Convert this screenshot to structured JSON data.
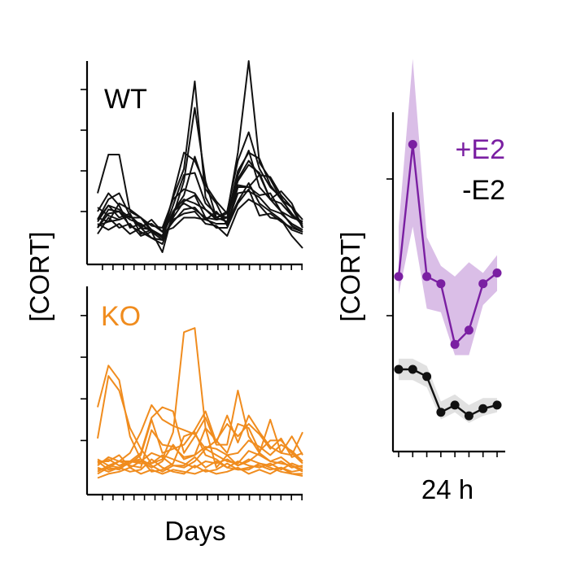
{
  "colors": {
    "wt": "#111111",
    "ko": "#f08c1e",
    "e2_plus": "#7a1fa2",
    "e2_plus_band": "#d3b3e3",
    "e2_minus": "#111111",
    "e2_minus_band": "#dcdcdc"
  },
  "chart_data": [
    {
      "type": "line",
      "panel": "top-left",
      "annotation": "WT",
      "xlabel": "",
      "ylabel": "[CORT]",
      "ylim": [
        0,
        10
      ],
      "x": [
        1,
        2,
        3,
        4,
        5,
        6,
        7,
        8,
        9,
        10,
        11,
        12,
        13,
        14,
        15,
        16,
        17,
        18,
        19,
        20
      ],
      "series": [
        {
          "values": [
            3.5,
            5.4,
            5.4,
            2.6,
            2.3,
            1.7,
            1.4,
            2.6,
            3.4,
            5.3,
            3.7,
            3.0,
            1.9,
            3.8,
            3.8,
            4.4,
            3.2,
            3.6,
            3.0,
            1.8
          ]
        },
        {
          "values": [
            2.2,
            3.2,
            3.5,
            2.4,
            1.8,
            2.2,
            1.6,
            3.3,
            4.7,
            9.0,
            3.3,
            2.3,
            2.5,
            5.5,
            10.0,
            5.0,
            4.2,
            3.2,
            2.8,
            2.2
          ]
        },
        {
          "values": [
            1.8,
            2.7,
            2.6,
            1.9,
            1.6,
            1.3,
            1.0,
            2.4,
            4.1,
            7.7,
            4.1,
            2.3,
            2.6,
            5.1,
            6.5,
            4.7,
            3.8,
            3.3,
            2.4,
            2.0
          ]
        },
        {
          "values": [
            2.8,
            2.4,
            2.2,
            2.4,
            1.8,
            1.7,
            1.3,
            3.4,
            5.5,
            5.1,
            3.9,
            3.1,
            2.5,
            4.1,
            4.9,
            4.5,
            3.2,
            3.0,
            2.4,
            2.1
          ]
        },
        {
          "values": [
            2.2,
            2.9,
            2.3,
            2.5,
            1.5,
            1.7,
            1.4,
            2.9,
            4.4,
            4.5,
            3.0,
            2.5,
            2.3,
            4.6,
            5.5,
            5.2,
            3.9,
            3.2,
            2.5,
            1.9
          ]
        },
        {
          "values": [
            2.3,
            2.1,
            3.0,
            2.7,
            2.3,
            1.9,
            1.8,
            3.2,
            3.7,
            3.5,
            2.7,
            2.2,
            2.3,
            4.2,
            5.1,
            4.4,
            4.3,
            3.4,
            2.8,
            1.8
          ]
        },
        {
          "values": [
            2.6,
            3.5,
            2.9,
            1.8,
            2.0,
            1.6,
            1.4,
            2.6,
            3.2,
            3.0,
            2.7,
            2.3,
            2.1,
            4.4,
            5.6,
            3.8,
            3.2,
            2.6,
            2.3,
            2.1
          ]
        },
        {
          "values": [
            2.1,
            2.9,
            2.7,
            2.3,
            2.3,
            1.6,
            1.2,
            2.3,
            3.1,
            3.4,
            2.3,
            2.2,
            2.3,
            3.9,
            3.8,
            3.4,
            3.5,
            2.6,
            1.9,
            1.6
          ]
        },
        {
          "values": [
            1.5,
            2.3,
            1.8,
            2.0,
            1.4,
            1.6,
            0.6,
            2.6,
            3.0,
            2.7,
            2.3,
            1.8,
            1.8,
            3.0,
            3.7,
            2.4,
            2.5,
            2.1,
            1.8,
            1.6
          ]
        },
        {
          "values": [
            1.8,
            2.5,
            2.6,
            2.2,
            2.0,
            1.6,
            1.4,
            2.1,
            2.7,
            2.8,
            2.2,
            2.0,
            2.0,
            3.1,
            4.0,
            3.0,
            2.6,
            2.2,
            1.7,
            1.5
          ]
        },
        {
          "values": [
            2.0,
            1.7,
            2.0,
            1.5,
            1.8,
            1.3,
            1.2,
            2.2,
            2.5,
            2.6,
            2.0,
            1.9,
            1.4,
            2.7,
            3.2,
            2.9,
            2.3,
            2.2,
            1.4,
            0.8
          ]
        },
        {
          "values": [
            1.9,
            2.1,
            2.2,
            2.4,
            1.9,
            2.0,
            1.6,
            1.8,
            2.3,
            2.3,
            2.2,
            2.6,
            2.0,
            3.5,
            3.6,
            3.3,
            2.7,
            2.5,
            2.0,
            1.7
          ]
        }
      ]
    },
    {
      "type": "line",
      "panel": "bottom-left",
      "annotation": "KO",
      "xlabel": "Days",
      "ylabel": "[CORT]",
      "ylim": [
        0,
        10
      ],
      "x": [
        1,
        2,
        3,
        4,
        5,
        6,
        7,
        8,
        9,
        10,
        11,
        12,
        13,
        14,
        15,
        16,
        17,
        18,
        19,
        20
      ],
      "series": [
        {
          "values": [
            2.7,
            5.7,
            5.0,
            3.2,
            2.2,
            1.5,
            1.7,
            3.0,
            7.8,
            8.0,
            3.2,
            1.3,
            1.9,
            1.4,
            1.6,
            2.0,
            1.6,
            1.5,
            1.4,
            1.1
          ]
        },
        {
          "values": [
            4.2,
            6.2,
            5.5,
            2.8,
            1.7,
            1.1,
            1.2,
            1.5,
            2.8,
            3.0,
            1.9,
            1.7,
            1.3,
            1.2,
            1.2,
            1.5,
            1.3,
            1.1,
            1.0,
            1.0
          ]
        },
        {
          "values": [
            1.7,
            1.4,
            1.6,
            2.0,
            3.0,
            4.3,
            3.6,
            3.3,
            3.1,
            2.9,
            2.2,
            2.6,
            2.0,
            3.4,
            3.2,
            2.1,
            2.6,
            2.6,
            2.0,
            1.5
          ]
        },
        {
          "values": [
            1.6,
            1.2,
            1.3,
            1.6,
            2.0,
            3.7,
            4.2,
            4.0,
            2.0,
            2.8,
            3.7,
            2.4,
            2.4,
            5.0,
            2.8,
            2.0,
            3.6,
            2.0,
            1.9,
            3.0
          ]
        },
        {
          "values": [
            1.3,
            1.1,
            1.3,
            1.5,
            1.9,
            3.6,
            2.0,
            2.2,
            2.4,
            3.1,
            4.0,
            2.5,
            3.8,
            2.5,
            3.8,
            3.0,
            2.3,
            2.0,
            2.8,
            1.9
          ]
        },
        {
          "values": [
            1.0,
            1.3,
            1.6,
            1.4,
            1.3,
            3.1,
            2.4,
            2.3,
            1.8,
            1.9,
            3.2,
            2.6,
            3.4,
            2.8,
            3.4,
            2.9,
            2.2,
            2.7,
            1.8,
            2.0
          ]
        },
        {
          "values": [
            1.4,
            1.8,
            1.6,
            1.6,
            1.6,
            1.3,
            1.6,
            2.4,
            1.7,
            1.9,
            2.3,
            2.2,
            1.9,
            2.0,
            2.6,
            2.3,
            1.9,
            2.4,
            2.1,
            1.6
          ]
        },
        {
          "values": [
            1.6,
            1.6,
            1.9,
            1.3,
            1.6,
            2.0,
            1.8,
            1.4,
            1.3,
            1.6,
            2.2,
            1.9,
            1.6,
            1.5,
            2.1,
            1.9,
            1.6,
            1.8,
            1.4,
            1.2
          ]
        },
        {
          "values": [
            1.2,
            1.3,
            1.2,
            1.6,
            1.7,
            1.4,
            1.1,
            1.4,
            1.4,
            1.8,
            1.3,
            1.6,
            1.3,
            1.6,
            1.4,
            1.3,
            1.5,
            1.2,
            1.5,
            1.3
          ]
        },
        {
          "values": [
            1.1,
            1.4,
            1.3,
            1.1,
            1.2,
            1.7,
            1.3,
            1.1,
            1.0,
            1.4,
            1.1,
            1.2,
            1.5,
            1.2,
            1.3,
            1.4,
            1.2,
            1.3,
            1.1,
            1.2
          ]
        },
        {
          "values": [
            1.5,
            1.7,
            1.4,
            1.6,
            1.5,
            1.5,
            1.9,
            1.7,
            1.5,
            1.3,
            1.6,
            1.5,
            1.7,
            1.4,
            1.7,
            1.5,
            1.4,
            1.6,
            1.3,
            1.4
          ]
        },
        {
          "values": [
            0.8,
            1.0,
            1.1,
            1.3,
            1.0,
            1.2,
            1.0,
            1.2,
            1.1,
            1.0,
            1.2,
            1.0,
            1.1,
            1.3,
            1.0,
            1.2,
            1.0,
            1.3,
            1.0,
            0.9
          ]
        }
      ]
    },
    {
      "type": "line",
      "panel": "right",
      "xlabel": "24 h",
      "ylabel": "[CORT]",
      "ylim": [
        0,
        10
      ],
      "x": [
        0,
        1,
        2,
        3,
        4,
        5,
        6,
        7
      ],
      "series": [
        {
          "name": "+E2",
          "values": [
            4.9,
            8.6,
            4.9,
            4.7,
            3.0,
            3.4,
            4.7,
            5.0
          ],
          "lower": [
            4.4,
            6.3,
            4.0,
            3.9,
            2.7,
            2.7,
            4.1,
            4.5
          ],
          "upper": [
            6.3,
            11.0,
            6.0,
            5.2,
            4.9,
            5.3,
            5.0,
            5.5
          ]
        },
        {
          "name": "-E2",
          "values": [
            2.3,
            2.3,
            2.1,
            1.1,
            1.3,
            1.0,
            1.2,
            1.3
          ],
          "lower": [
            2.0,
            2.0,
            1.8,
            0.9,
            1.1,
            0.8,
            1.0,
            1.1
          ],
          "upper": [
            2.6,
            2.6,
            2.4,
            1.4,
            1.6,
            1.3,
            1.5,
            1.5
          ]
        }
      ]
    }
  ]
}
